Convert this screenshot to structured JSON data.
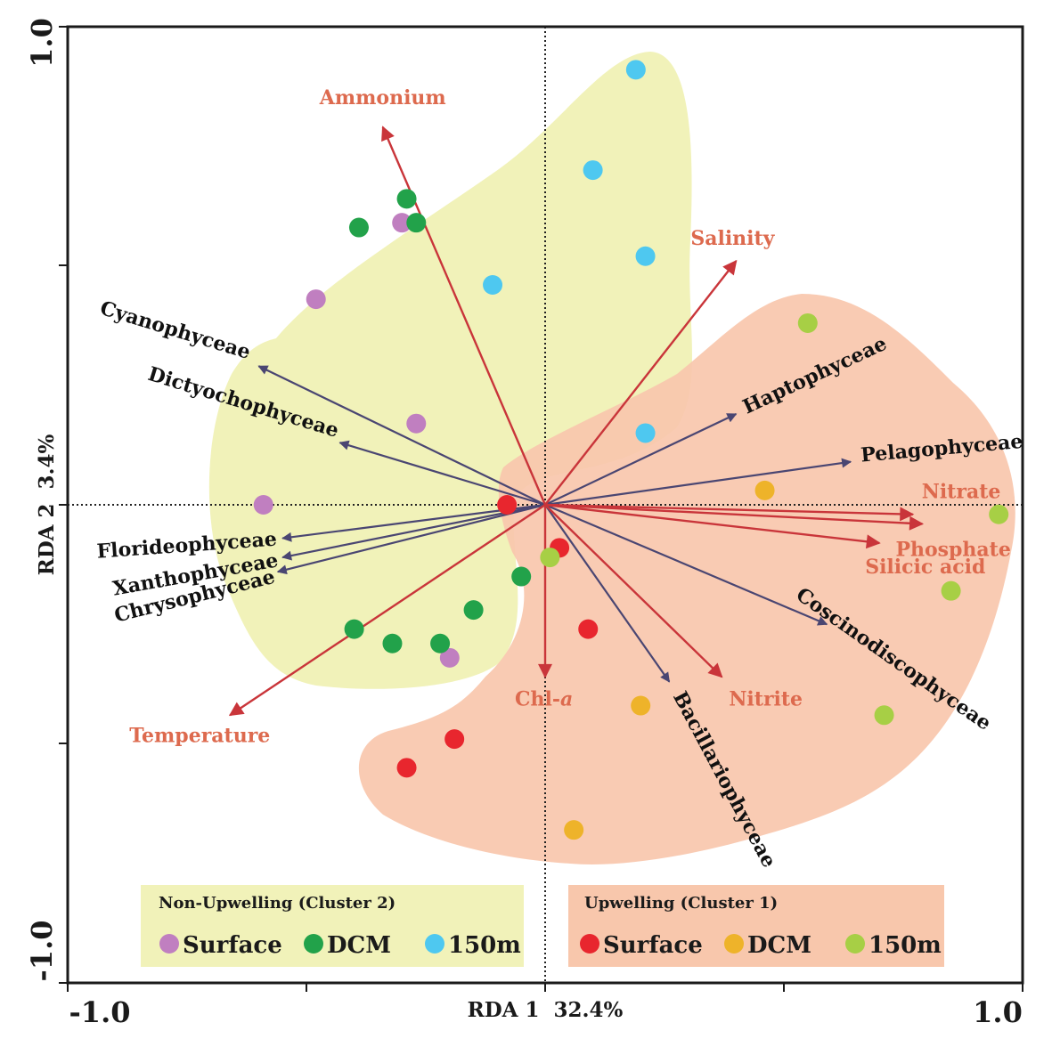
{
  "chart_data": {
    "type": "scatter",
    "subtype": "rda-biplot",
    "xlim": [
      -1.0,
      1.0
    ],
    "ylim": [
      -1.0,
      1.0
    ],
    "x_tick_labels": [
      "-1.0",
      "1.0"
    ],
    "y_tick_labels": [
      "1.0",
      "-1.0"
    ],
    "xlabel": "RDA 1  32.4%",
    "ylabel": "RDA 2  3.4%",
    "environmental_vectors": [
      {
        "name": "Ammonium",
        "x": -0.34,
        "y": 0.79
      },
      {
        "name": "Salinity",
        "x": 0.4,
        "y": 0.51
      },
      {
        "name": "Nitrate",
        "x": 0.77,
        "y": -0.02
      },
      {
        "name": "Phosphate",
        "x": 0.79,
        "y": -0.04
      },
      {
        "name": "Silicic acid",
        "x": 0.7,
        "y": -0.08
      },
      {
        "name": "Nitrite",
        "x": 0.37,
        "y": -0.36
      },
      {
        "name": "Chl-a",
        "x": 0.0,
        "y": -0.36
      },
      {
        "name": "Temperature",
        "x": -0.66,
        "y": -0.44
      }
    ],
    "taxa_vectors": [
      {
        "name": "Cyanophyceae",
        "x": -0.6,
        "y": 0.29
      },
      {
        "name": "Dictyochophyceae",
        "x": -0.43,
        "y": 0.13
      },
      {
        "name": "Florideophyceae",
        "x": -0.55,
        "y": -0.07
      },
      {
        "name": "Xanthophyceae",
        "x": -0.55,
        "y": -0.11
      },
      {
        "name": "Chrysophyceae",
        "x": -0.56,
        "y": -0.14
      },
      {
        "name": "Haptophyceae",
        "x": 0.4,
        "y": 0.19
      },
      {
        "name": "Pelagophyceae",
        "x": 0.64,
        "y": 0.09
      },
      {
        "name": "Coscinodiscophyceae",
        "x": 0.59,
        "y": -0.25
      },
      {
        "name": "Bacillariophyceae",
        "x": 0.26,
        "y": -0.37
      }
    ],
    "series": [
      {
        "name": "Non-Upwelling Surface",
        "cluster": "Non-Upwelling (Cluster 2)",
        "color": "#c07fc0",
        "points": [
          [
            -0.3,
            0.59
          ],
          [
            -0.48,
            0.43
          ],
          [
            -0.27,
            0.17
          ],
          [
            -0.59,
            0.0
          ],
          [
            -0.2,
            -0.32
          ]
        ]
      },
      {
        "name": "Non-Upwelling DCM",
        "cluster": "Non-Upwelling (Cluster 2)",
        "color": "#22a24a",
        "points": [
          [
            -0.29,
            0.64
          ],
          [
            -0.39,
            0.58
          ],
          [
            -0.27,
            0.59
          ],
          [
            -0.05,
            -0.15
          ],
          [
            -0.15,
            -0.22
          ],
          [
            -0.4,
            -0.26
          ],
          [
            -0.32,
            -0.29
          ],
          [
            -0.22,
            -0.29
          ]
        ]
      },
      {
        "name": "Non-Upwelling 150m",
        "cluster": "Non-Upwelling (Cluster 2)",
        "color": "#4ec8f0",
        "points": [
          [
            0.19,
            0.91
          ],
          [
            0.1,
            0.7
          ],
          [
            0.21,
            0.52
          ],
          [
            -0.11,
            0.46
          ],
          [
            0.21,
            0.15
          ]
        ]
      },
      {
        "name": "Upwelling Surface",
        "cluster": "Upwelling (Cluster 1)",
        "color": "#e8262e",
        "points": [
          [
            -0.08,
            0.0
          ],
          [
            0.03,
            -0.09
          ],
          [
            0.09,
            -0.26
          ],
          [
            -0.19,
            -0.49
          ],
          [
            -0.29,
            -0.55
          ]
        ]
      },
      {
        "name": "Upwelling DCM",
        "cluster": "Upwelling (Cluster 1)",
        "color": "#eeb32a",
        "points": [
          [
            0.46,
            0.03
          ],
          [
            0.2,
            -0.42
          ],
          [
            0.06,
            -0.68
          ]
        ]
      },
      {
        "name": "Upwelling 150m",
        "cluster": "Upwelling (Cluster 1)",
        "color": "#a7cf45",
        "points": [
          [
            0.55,
            0.38
          ],
          [
            0.95,
            -0.02
          ],
          [
            0.01,
            -0.11
          ],
          [
            0.85,
            -0.18
          ],
          [
            0.71,
            -0.44
          ]
        ]
      }
    ]
  },
  "legend": {
    "non_upwelling": {
      "title": "Non-Upwelling (Cluster 2)",
      "items": [
        {
          "label": "Surface",
          "color": "#c07fc0"
        },
        {
          "label": "DCM",
          "color": "#22a24a"
        },
        {
          "label": "150m",
          "color": "#4ec8f0"
        }
      ]
    },
    "upwelling": {
      "title": "Upwelling (Cluster 1)",
      "items": [
        {
          "label": "Surface",
          "color": "#e8262e"
        },
        {
          "label": "DCM",
          "color": "#eeb32a"
        },
        {
          "label": "150m",
          "color": "#a7cf45"
        }
      ]
    }
  },
  "colors": {
    "env_arrow": "#c9353a",
    "env_label": "#dd6a4e",
    "taxa_arrow": "#4a4672",
    "non_upwelling_region": "#f1f2b9",
    "upwelling_region": "#f8c7ac"
  }
}
